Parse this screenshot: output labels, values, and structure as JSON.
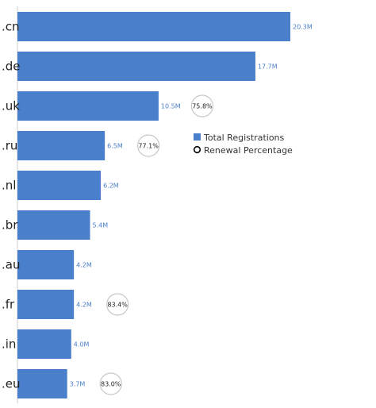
{
  "chart_data": {
    "type": "bar",
    "orientation": "horizontal",
    "categories": [
      ".cn",
      ".de",
      ".uk",
      ".ru",
      ".nl",
      ".br",
      ".au",
      ".fr",
      ".in",
      ".eu"
    ],
    "series": [
      {
        "name": "Total Registrations",
        "values": [
          20.3,
          17.7,
          10.5,
          6.5,
          6.2,
          5.4,
          4.2,
          4.2,
          4.0,
          3.7
        ],
        "labels": [
          "20.3M",
          "17.7M",
          "10.5M",
          "6.5M",
          "6.2M",
          "5.4M",
          "4.2M",
          "4.2M",
          "4.0M",
          "3.7M"
        ],
        "unit": "M",
        "color": "#4a7fcb"
      },
      {
        "name": "Renewal Percentage",
        "values": [
          null,
          null,
          75.8,
          77.1,
          null,
          null,
          null,
          83.4,
          null,
          83.0
        ],
        "labels": [
          null,
          null,
          "75.8%",
          "77.1%",
          null,
          null,
          null,
          "83.4%",
          null,
          "83.0%"
        ],
        "marker": "circle"
      }
    ],
    "legend": {
      "placement": "right",
      "items": [
        {
          "label": "Total Registrations",
          "symbol": "square",
          "color": "#4a7fcb"
        },
        {
          "label": "Renewal Percentage",
          "symbol": "circle",
          "color": "#000000"
        }
      ]
    },
    "xlim": [
      0,
      20.3
    ],
    "grid": false,
    "title": "",
    "xlabel": "",
    "ylabel": ""
  },
  "colors": {
    "bar": "#4a7fcb",
    "value_label": "#4a7fcb",
    "circle_stroke": "#c8c8c8",
    "axis_line": "#cccccc",
    "category_text": "#1f1f1f"
  }
}
